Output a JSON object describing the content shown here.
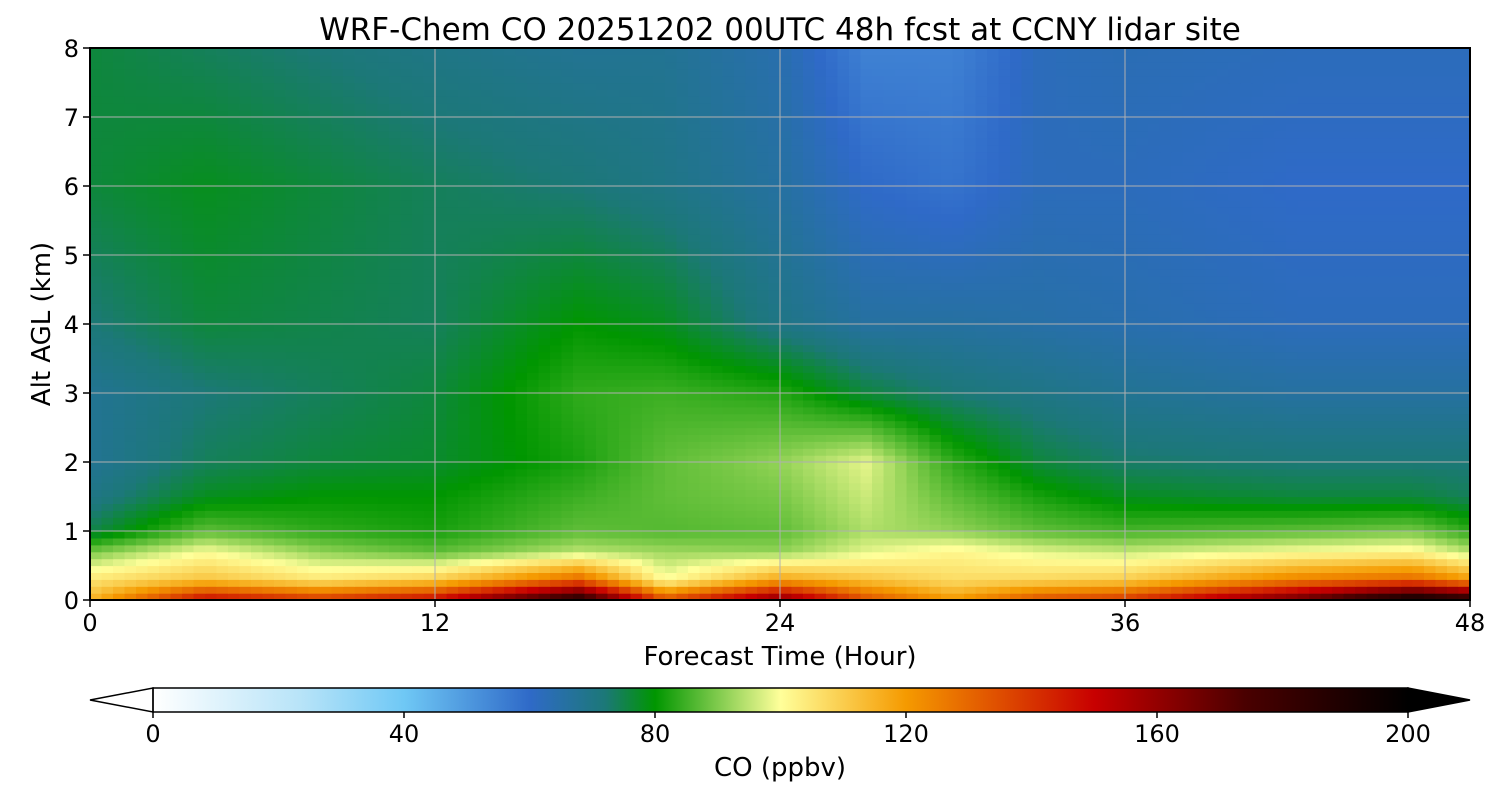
{
  "chart_data": {
    "type": "heatmap",
    "title": "WRF-Chem CO  20251202 00UTC 48h fcst at CCNY lidar site",
    "xlabel": "Forecast Time (Hour)",
    "ylabel": "Alt AGL (km)",
    "xlim": [
      0,
      48
    ],
    "ylim": [
      0,
      8
    ],
    "x_ticks": [
      "0",
      "12",
      "24",
      "36",
      "48"
    ],
    "y_ticks": [
      "0",
      "1",
      "2",
      "3",
      "4",
      "5",
      "6",
      "7",
      "8"
    ],
    "grid": true,
    "colorbar": {
      "label": "CO  (ppbv)",
      "range": [
        0,
        200
      ],
      "ticks": [
        "0",
        "40",
        "80",
        "120",
        "160",
        "200"
      ],
      "extend": "both",
      "colors": [
        "#ffffff",
        "#6fc8f5",
        "#2f6ac8",
        "#009600",
        "#ffff9a",
        "#f59a00",
        "#c80000",
        "#000000"
      ]
    },
    "x_hours": [
      0,
      4,
      8,
      12,
      17,
      20,
      24,
      27,
      30,
      33,
      36,
      42,
      46,
      48
    ],
    "z_km": [
      0,
      0.3,
      0.7,
      1.0,
      1.5,
      2.0,
      3.0,
      4.0,
      6.0,
      8.0
    ],
    "co_ppbv": [
      [
        115,
        150,
        140,
        150,
        190,
        135,
        165,
        135,
        120,
        135,
        140,
        170,
        200,
        190
      ],
      [
        105,
        112,
        105,
        110,
        130,
        100,
        118,
        112,
        107,
        108,
        110,
        125,
        130,
        120
      ],
      [
        90,
        100,
        92,
        88,
        95,
        93,
        92,
        98,
        102,
        98,
        96,
        100,
        102,
        95
      ],
      [
        75,
        88,
        84,
        82,
        88,
        87,
        88,
        94,
        92,
        88,
        86,
        88,
        90,
        84
      ],
      [
        70,
        78,
        80,
        80,
        85,
        88,
        90,
        96,
        88,
        82,
        78,
        76,
        76,
        74
      ],
      [
        68,
        74,
        76,
        77,
        82,
        88,
        92,
        98,
        84,
        76,
        73,
        72,
        72,
        72
      ],
      [
        68,
        72,
        74,
        76,
        84,
        85,
        83,
        76,
        72,
        70,
        68,
        66,
        66,
        66
      ],
      [
        72,
        76,
        75,
        74,
        80,
        78,
        70,
        66,
        66,
        65,
        64,
        62,
        62,
        62
      ],
      [
        76,
        78,
        76,
        74,
        72,
        70,
        66,
        60,
        58,
        62,
        62,
        60,
        60,
        60
      ],
      [
        76,
        74,
        72,
        70,
        68,
        68,
        64,
        55,
        55,
        62,
        63,
        62,
        62,
        62
      ]
    ]
  }
}
